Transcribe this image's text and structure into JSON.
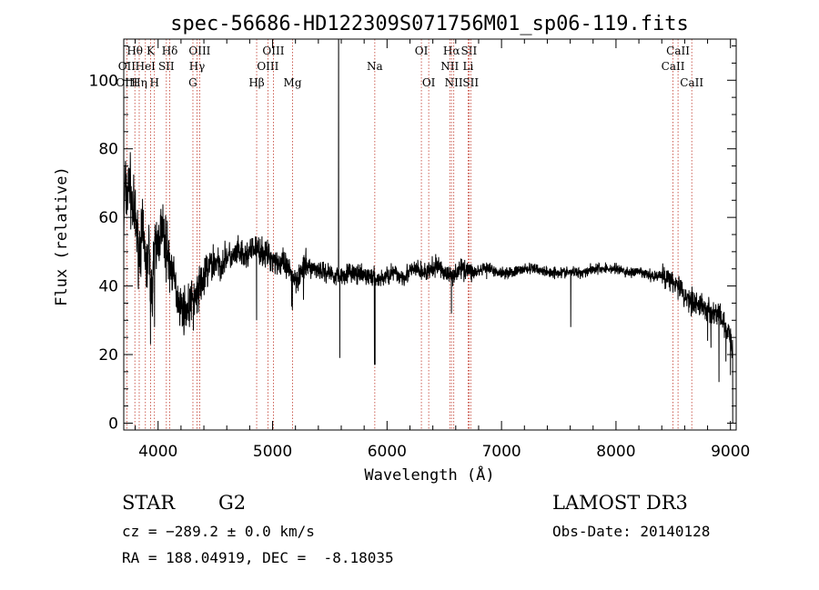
{
  "title": "spec-56686-HD122309S071756M01_sp06-119.fits",
  "info": {
    "object_class": "STAR",
    "subclass": "G2",
    "survey": "LAMOST DR3",
    "redshift": "cz = −289.2 ± 0.0 km/s",
    "obs_date": "Obs-Date: 20140128",
    "coords": "RA = 188.04919, DEC =  -8.18035"
  },
  "colors": {
    "spectrum": "#000000",
    "line_marker": "#c0392b"
  },
  "chart_data": {
    "type": "line",
    "xlabel": "Wavelength (Å)",
    "ylabel": "Flux (relative)",
    "xlim": [
      3700,
      9050
    ],
    "ylim": [
      -2,
      112
    ],
    "xticks": [
      4000,
      5000,
      6000,
      7000,
      8000,
      9000
    ],
    "yticks": [
      0,
      20,
      40,
      60,
      80,
      100
    ],
    "grid": false,
    "anchors": [
      [
        3700,
        55
      ],
      [
        3710,
        70
      ],
      [
        3730,
        65
      ],
      [
        3750,
        72
      ],
      [
        3770,
        63
      ],
      [
        3800,
        60
      ],
      [
        3830,
        50
      ],
      [
        3860,
        55
      ],
      [
        3880,
        52
      ],
      [
        3900,
        45
      ],
      [
        3920,
        50
      ],
      [
        3940,
        36
      ],
      [
        3960,
        48
      ],
      [
        3990,
        52
      ],
      [
        4020,
        56
      ],
      [
        4050,
        54
      ],
      [
        4080,
        50
      ],
      [
        4100,
        47
      ],
      [
        4130,
        43
      ],
      [
        4160,
        38
      ],
      [
        4200,
        34
      ],
      [
        4240,
        33
      ],
      [
        4270,
        34
      ],
      [
        4300,
        36
      ],
      [
        4330,
        37
      ],
      [
        4360,
        40
      ],
      [
        4400,
        42
      ],
      [
        4450,
        46
      ],
      [
        4500,
        47
      ],
      [
        4550,
        46
      ],
      [
        4600,
        49
      ],
      [
        4650,
        48
      ],
      [
        4700,
        50
      ],
      [
        4750,
        48
      ],
      [
        4800,
        50
      ],
      [
        4850,
        51
      ],
      [
        4900,
        50
      ],
      [
        4950,
        49
      ],
      [
        5000,
        48
      ],
      [
        5050,
        47
      ],
      [
        5100,
        46
      ],
      [
        5150,
        44
      ],
      [
        5200,
        42
      ],
      [
        5250,
        44
      ],
      [
        5300,
        46
      ],
      [
        5350,
        45
      ],
      [
        5400,
        45
      ],
      [
        5450,
        44
      ],
      [
        5500,
        44
      ],
      [
        5550,
        43
      ],
      [
        5600,
        43
      ],
      [
        5650,
        44
      ],
      [
        5700,
        44
      ],
      [
        5750,
        43
      ],
      [
        5800,
        43
      ],
      [
        5850,
        43
      ],
      [
        5900,
        42
      ],
      [
        5950,
        42
      ],
      [
        6000,
        43
      ],
      [
        6050,
        44
      ],
      [
        6100,
        43
      ],
      [
        6150,
        43
      ],
      [
        6200,
        44
      ],
      [
        6250,
        45
      ],
      [
        6300,
        44
      ],
      [
        6350,
        44
      ],
      [
        6400,
        45
      ],
      [
        6450,
        46
      ],
      [
        6500,
        44
      ],
      [
        6550,
        43
      ],
      [
        6600,
        44
      ],
      [
        6650,
        45
      ],
      [
        6700,
        45
      ],
      [
        6750,
        44
      ],
      [
        6800,
        44
      ],
      [
        6850,
        45
      ],
      [
        6900,
        45
      ],
      [
        6950,
        44
      ],
      [
        7000,
        44
      ],
      [
        7100,
        44
      ],
      [
        7200,
        45
      ],
      [
        7300,
        45
      ],
      [
        7400,
        44
      ],
      [
        7500,
        44
      ],
      [
        7600,
        44
      ],
      [
        7700,
        44
      ],
      [
        7800,
        45
      ],
      [
        7900,
        45
      ],
      [
        8000,
        45
      ],
      [
        8100,
        44
      ],
      [
        8200,
        44
      ],
      [
        8300,
        43
      ],
      [
        8400,
        43
      ],
      [
        8500,
        42
      ],
      [
        8550,
        40
      ],
      [
        8600,
        37
      ],
      [
        8650,
        36
      ],
      [
        8700,
        35
      ],
      [
        8750,
        34
      ],
      [
        8800,
        33
      ],
      [
        8850,
        32
      ],
      [
        8900,
        32
      ],
      [
        8950,
        28
      ],
      [
        9000,
        25
      ],
      [
        9020,
        20
      ]
    ],
    "features": [
      [
        3934,
        23
      ],
      [
        3969,
        28
      ],
      [
        4101,
        38
      ],
      [
        4227,
        27
      ],
      [
        4308,
        27
      ],
      [
        4340,
        32
      ],
      [
        4861,
        30
      ],
      [
        5167,
        34
      ],
      [
        5173,
        33
      ],
      [
        5270,
        36
      ],
      [
        5577,
        125
      ],
      [
        5587,
        19
      ],
      [
        5890,
        17
      ],
      [
        5896,
        17
      ],
      [
        6563,
        32
      ],
      [
        6870,
        42
      ],
      [
        7605,
        28
      ],
      [
        8498,
        38
      ],
      [
        8542,
        36
      ],
      [
        8662,
        33
      ],
      [
        8800,
        24
      ],
      [
        8830,
        22
      ],
      [
        8900,
        12
      ],
      [
        8960,
        18
      ],
      [
        9000,
        14
      ]
    ],
    "line_markers": [
      {
        "label": "Hθ",
        "x": 3797,
        "row": 0
      },
      {
        "label": "K",
        "x": 3934,
        "row": 0
      },
      {
        "label": "Hδ",
        "x": 4102,
        "row": 0
      },
      {
        "label": "OIII",
        "x": 4363,
        "row": 0
      },
      {
        "label": "OIII",
        "x": 5007,
        "row": 0
      },
      {
        "label": "OI",
        "x": 6300,
        "row": 0
      },
      {
        "label": "Hα",
        "x": 6563,
        "row": 0
      },
      {
        "label": "SII",
        "x": 6716,
        "row": 0
      },
      {
        "label": "CaII",
        "x": 8542,
        "row": 0
      },
      {
        "label": "OII",
        "x": 3727,
        "row": 1
      },
      {
        "label": "HeI",
        "x": 3889,
        "row": 1
      },
      {
        "label": "SII",
        "x": 4072,
        "row": 1
      },
      {
        "label": "Hγ",
        "x": 4340,
        "row": 1
      },
      {
        "label": "OIII",
        "x": 4959,
        "row": 1
      },
      {
        "label": "Na",
        "x": 5893,
        "row": 1
      },
      {
        "label": "NII",
        "x": 6548,
        "row": 1
      },
      {
        "label": "Li",
        "x": 6708,
        "row": 1
      },
      {
        "label": "CaII",
        "x": 8498,
        "row": 1
      },
      {
        "label": "OIII",
        "x": 3727,
        "row": 2
      },
      {
        "label": "Hη",
        "x": 3835,
        "row": 2
      },
      {
        "label": "H",
        "x": 3968,
        "row": 2
      },
      {
        "label": "G",
        "x": 4304,
        "row": 2
      },
      {
        "label": "Hβ",
        "x": 4861,
        "row": 2
      },
      {
        "label": "Mg",
        "x": 5175,
        "row": 2
      },
      {
        "label": "OI",
        "x": 6364,
        "row": 2
      },
      {
        "label": "NII",
        "x": 6583,
        "row": 2
      },
      {
        "label": "SII",
        "x": 6731,
        "row": 2
      },
      {
        "label": "CaII",
        "x": 8662,
        "row": 2
      }
    ]
  }
}
